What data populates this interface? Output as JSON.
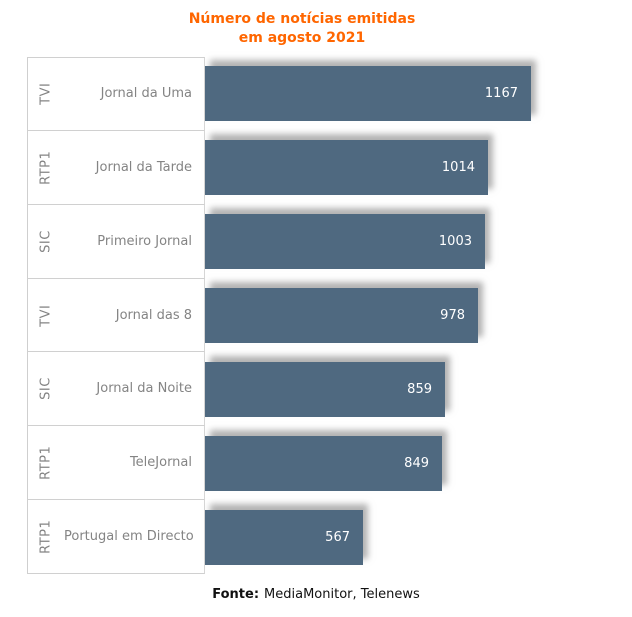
{
  "title": {
    "line1": "Número de notícias emitidas",
    "line2": "em agosto 2021",
    "color": "#FF6600"
  },
  "footer": {
    "label": "Fonte:",
    "text": "MediaMonitor, Telenews"
  },
  "chart_data": {
    "type": "bar",
    "orientation": "horizontal",
    "title": "Número de notícias emitidas em agosto 2021",
    "categories": [
      "Jornal da Uma",
      "Jornal da Tarde",
      "Primeiro Jornal",
      "Jornal das 8",
      "Jornal da Noite",
      "TeleJornal",
      "Portugal em Directo"
    ],
    "group_labels": [
      "TVI",
      "RTP1",
      "SIC",
      "TVI",
      "SIC",
      "RTP1",
      "RTP1"
    ],
    "values": [
      1167,
      1014,
      1003,
      978,
      859,
      849,
      567
    ],
    "rows": [
      {
        "channel": "TVI",
        "program": "Jornal da Uma",
        "value": 1167
      },
      {
        "channel": "RTP1",
        "program": "Jornal da Tarde",
        "value": 1014
      },
      {
        "channel": "SIC",
        "program": "Primeiro Jornal",
        "value": 1003
      },
      {
        "channel": "TVI",
        "program": "Jornal das 8",
        "value": 978
      },
      {
        "channel": "SIC",
        "program": "Jornal da Noite",
        "value": 859
      },
      {
        "channel": "RTP1",
        "program": "TeleJornal",
        "value": 849
      },
      {
        "channel": "RTP1",
        "program": "Portugal em Directo",
        "value": 567
      }
    ],
    "bar_color": "#4F6980",
    "value_label_color": "#FFFFFF",
    "axis_label_color": "#848484",
    "value_labels_inside": true,
    "grid": false,
    "legend": false,
    "source": "Fonte: MediaMonitor, Telenews"
  }
}
